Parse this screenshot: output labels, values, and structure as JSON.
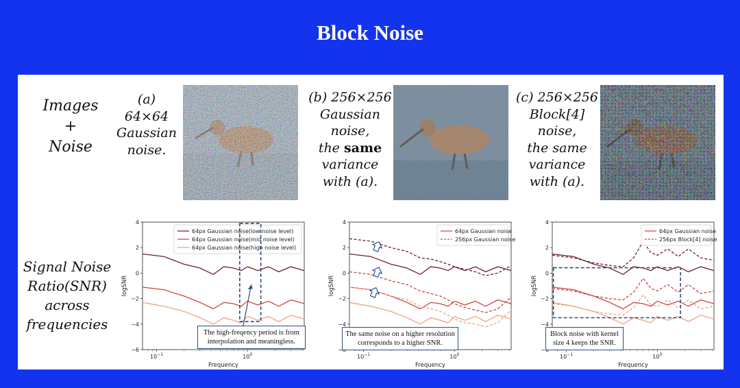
{
  "title": "Block Noise",
  "row_labels": {
    "images": [
      "Images",
      "+",
      "Noise"
    ],
    "snr": [
      "Signal Noise",
      "Ratio(SNR)",
      "across",
      "frequencies"
    ]
  },
  "captions": {
    "a": [
      "(a)",
      "64×64",
      "Gaussian",
      "noise."
    ],
    "b_lines": [
      "(b) 256×256",
      "Gaussian",
      "noise,"
    ],
    "b_same_prefix": "the ",
    "b_same_bold": "same",
    "b_tail": [
      "variance",
      "with (a)."
    ],
    "c": [
      "(c) 256×256",
      "Block[4]",
      "noise,",
      "the same",
      "variance",
      "with (a)."
    ]
  },
  "images": [
    {
      "name": "bird-64px-gaussian",
      "icon": "bird-image-coarse-noise"
    },
    {
      "name": "bird-256px-gaussian",
      "icon": "bird-image-fine-noise"
    },
    {
      "name": "bird-256px-block4",
      "icon": "bird-image-block-noise"
    }
  ],
  "annotations": {
    "a": "The high-freqency period is from interpolation and meaningless.",
    "b": "The same noise on a higher resolution corresponds to a higher SNR.",
    "c": "Block noise with kernel size 4 keeps the SNR."
  },
  "chart_data": [
    {
      "type": "line",
      "xscale": "log",
      "xlim": [
        0.07,
        4.2
      ],
      "ylim": [
        -6,
        4
      ],
      "xlabel": "Frequency",
      "ylabel": "logSNR",
      "xticks": [
        "10^-1",
        "10^0"
      ],
      "yticks": [
        -6,
        -4,
        -2,
        0,
        2,
        4
      ],
      "legend_position": "top-right",
      "series": [
        {
          "name": "64px Gaussian noise(low noise level)",
          "color": "#6b1f2a",
          "dash": "solid",
          "x": [
            0.07,
            0.12,
            0.2,
            0.3,
            0.42,
            0.55,
            0.7,
            0.85,
            1.0,
            1.3,
            1.7,
            2.2,
            3.0,
            4.2
          ],
          "y": [
            1.5,
            1.3,
            0.7,
            0.4,
            -0.1,
            0.5,
            0.4,
            0.2,
            0.5,
            0.2,
            0.5,
            0.1,
            0.5,
            0.2
          ]
        },
        {
          "name": "64px Gaussian noise(mid noise level)",
          "color": "#c8463f",
          "dash": "solid",
          "x": [
            0.07,
            0.12,
            0.2,
            0.3,
            0.42,
            0.55,
            0.7,
            0.85,
            1.0,
            1.3,
            1.7,
            2.2,
            3.0,
            4.2
          ],
          "y": [
            -1.1,
            -1.3,
            -1.8,
            -2.3,
            -2.8,
            -2.3,
            -2.4,
            -2.6,
            -2.2,
            -2.5,
            -2.2,
            -2.6,
            -2.1,
            -2.4
          ]
        },
        {
          "name": "64px Gaussian noise(high noise level)",
          "color": "#f0a080",
          "dash": "solid",
          "x": [
            0.07,
            0.12,
            0.2,
            0.3,
            0.42,
            0.55,
            0.7,
            0.85,
            1.0,
            1.3,
            1.7,
            2.2,
            3.0,
            4.2
          ],
          "y": [
            -2.3,
            -2.6,
            -3.0,
            -3.5,
            -4.0,
            -3.5,
            -3.7,
            -3.9,
            -3.4,
            -3.7,
            -3.4,
            -3.8,
            -3.3,
            -3.6
          ]
        }
      ]
    },
    {
      "type": "line",
      "xscale": "log",
      "xlim": [
        0.07,
        4.2
      ],
      "ylim": [
        -6,
        4
      ],
      "xlabel": "Frequency",
      "ylabel": "logSNR",
      "xticks": [
        "10^-1",
        "10^0"
      ],
      "yticks": [
        -6,
        -4,
        -2,
        0,
        2,
        4
      ],
      "legend_position": "top-right",
      "legend": [
        {
          "name": "64px Gaussian noise",
          "color": "#d9433a",
          "dash": "solid"
        },
        {
          "name": "256px Gaussian noise",
          "color": "#d9433a",
          "dash": "dashed"
        }
      ],
      "series": [
        {
          "color": "#6b1f2a",
          "dash": "solid",
          "x": [
            0.07,
            0.12,
            0.2,
            0.3,
            0.42,
            0.55,
            0.7,
            0.85,
            1.0,
            1.3,
            1.7,
            2.2,
            3.0,
            4.2
          ],
          "y": [
            1.5,
            1.3,
            0.7,
            0.4,
            -0.1,
            0.5,
            0.4,
            0.2,
            0.5,
            0.2,
            0.5,
            0.1,
            0.5,
            0.2
          ]
        },
        {
          "color": "#6b1f2a",
          "dash": "dashed",
          "x": [
            0.07,
            0.12,
            0.2,
            0.3,
            0.42,
            0.55,
            0.7,
            0.85,
            1.0,
            1.3,
            1.7,
            2.2,
            3.0,
            4.2
          ],
          "y": [
            2.7,
            2.5,
            2.0,
            1.7,
            1.2,
            1.1,
            0.9,
            0.7,
            0.5,
            0.3,
            0.1,
            -0.2,
            0.0,
            0.6
          ]
        },
        {
          "color": "#c8463f",
          "dash": "solid",
          "x": [
            0.07,
            0.12,
            0.2,
            0.3,
            0.42,
            0.55,
            0.7,
            0.85,
            1.0,
            1.3,
            1.7,
            2.2,
            3.0,
            4.2
          ],
          "y": [
            -1.1,
            -1.3,
            -1.8,
            -2.3,
            -2.8,
            -2.3,
            -2.4,
            -2.6,
            -2.2,
            -2.5,
            -2.2,
            -2.6,
            -2.1,
            -2.4
          ]
        },
        {
          "color": "#c8463f",
          "dash": "dashed",
          "x": [
            0.07,
            0.12,
            0.2,
            0.3,
            0.42,
            0.55,
            0.7,
            0.85,
            1.0,
            1.3,
            1.7,
            2.2,
            3.0,
            4.2
          ],
          "y": [
            0.1,
            -0.1,
            -0.6,
            -0.9,
            -1.4,
            -1.6,
            -1.8,
            -2.1,
            -2.4,
            -2.7,
            -2.9,
            -3.1,
            -2.8,
            -1.9
          ]
        },
        {
          "color": "#f0a080",
          "dash": "solid",
          "x": [
            0.07,
            0.12,
            0.2,
            0.3,
            0.42,
            0.55,
            0.7,
            0.85,
            1.0,
            1.3,
            1.7,
            2.2,
            3.0,
            4.2
          ],
          "y": [
            -2.3,
            -2.6,
            -3.0,
            -3.5,
            -4.0,
            -3.5,
            -3.7,
            -3.9,
            -3.4,
            -3.7,
            -3.4,
            -3.8,
            -3.3,
            -3.6
          ]
        },
        {
          "color": "#f0a080",
          "dash": "dashed",
          "x": [
            0.07,
            0.12,
            0.2,
            0.3,
            0.42,
            0.55,
            0.7,
            0.85,
            1.0,
            1.3,
            1.7,
            2.2,
            3.0,
            4.2
          ],
          "y": [
            -1.1,
            -1.3,
            -1.8,
            -2.1,
            -2.6,
            -2.8,
            -3.0,
            -3.3,
            -3.6,
            -3.9,
            -4.0,
            -4.2,
            -3.9,
            -2.9
          ]
        }
      ]
    },
    {
      "type": "line",
      "xscale": "log",
      "xlim": [
        0.07,
        4.2
      ],
      "ylim": [
        -6,
        4
      ],
      "xlabel": "Frequency",
      "ylabel": "logSNR",
      "xticks": [
        "10^-1",
        "10^0"
      ],
      "yticks": [
        -6,
        -4,
        -2,
        0,
        2,
        4
      ],
      "legend_position": "top-right",
      "legend": [
        {
          "name": "64px Gaussian noise",
          "color": "#d9433a",
          "dash": "solid"
        },
        {
          "name": "256px Block[4] noise",
          "color": "#d9433a",
          "dash": "dashed"
        }
      ],
      "series": [
        {
          "color": "#6b1f2a",
          "dash": "solid",
          "x": [
            0.07,
            0.12,
            0.2,
            0.3,
            0.42,
            0.55,
            0.7,
            0.85,
            1.0,
            1.3,
            1.7,
            2.2,
            3.0,
            4.2
          ],
          "y": [
            1.5,
            1.3,
            0.7,
            0.4,
            -0.1,
            0.5,
            0.4,
            0.2,
            0.5,
            0.2,
            0.5,
            0.1,
            0.5,
            0.2
          ]
        },
        {
          "color": "#6b1f2a",
          "dash": "dashed",
          "x": [
            0.07,
            0.12,
            0.2,
            0.3,
            0.42,
            0.55,
            0.7,
            0.85,
            1.0,
            1.3,
            1.7,
            2.2,
            3.0,
            4.2
          ],
          "y": [
            1.4,
            1.2,
            0.8,
            0.6,
            0.5,
            1.2,
            2.5,
            1.6,
            1.4,
            1.9,
            1.3,
            1.9,
            1.2,
            1.0
          ]
        },
        {
          "color": "#c8463f",
          "dash": "solid",
          "x": [
            0.07,
            0.12,
            0.2,
            0.3,
            0.42,
            0.55,
            0.7,
            0.85,
            1.0,
            1.3,
            1.7,
            2.2,
            3.0,
            4.2
          ],
          "y": [
            -1.1,
            -1.3,
            -1.8,
            -2.3,
            -2.8,
            -2.3,
            -2.4,
            -2.6,
            -2.2,
            -2.5,
            -2.2,
            -2.6,
            -2.1,
            -2.4
          ]
        },
        {
          "color": "#c8463f",
          "dash": "dashed",
          "x": [
            0.07,
            0.12,
            0.2,
            0.3,
            0.42,
            0.55,
            0.7,
            0.85,
            1.0,
            1.3,
            1.7,
            2.2,
            3.0,
            4.2
          ],
          "y": [
            -1.2,
            -1.4,
            -1.8,
            -2.0,
            -2.1,
            -1.5,
            -0.4,
            -1.2,
            -1.4,
            -0.9,
            -1.5,
            -0.9,
            -1.6,
            -1.4
          ]
        },
        {
          "color": "#f0a080",
          "dash": "solid",
          "x": [
            0.07,
            0.12,
            0.2,
            0.3,
            0.42,
            0.55,
            0.7,
            0.85,
            1.0,
            1.3,
            1.7,
            2.2,
            3.0,
            4.2
          ],
          "y": [
            -2.3,
            -2.6,
            -3.0,
            -3.5,
            -4.0,
            -3.5,
            -3.7,
            -3.9,
            -3.4,
            -3.7,
            -3.4,
            -3.8,
            -3.3,
            -3.6
          ]
        },
        {
          "color": "#f0a080",
          "dash": "dashed",
          "x": [
            0.07,
            0.12,
            0.2,
            0.3,
            0.42,
            0.55,
            0.7,
            0.85,
            1.0,
            1.3,
            1.7,
            2.2,
            3.0,
            4.2
          ],
          "y": [
            -2.4,
            -2.6,
            -3.0,
            -3.2,
            -3.3,
            -2.7,
            -1.7,
            -2.5,
            -2.6,
            -2.1,
            -2.7,
            -2.1,
            -2.8,
            -2.6
          ]
        }
      ]
    }
  ]
}
